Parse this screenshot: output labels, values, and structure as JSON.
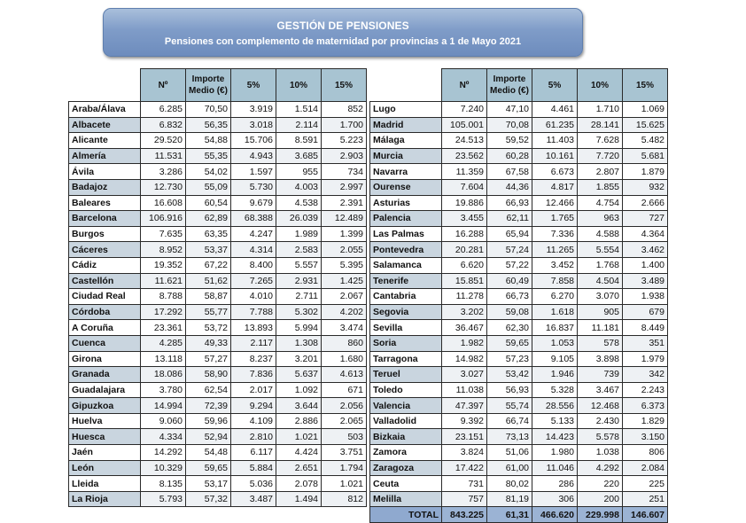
{
  "header": {
    "title": "GESTIÓN DE  PENSIONES",
    "subtitle": "Pensiones con complemento de maternidad por provincias a 1 de Mayo 2021"
  },
  "columns": [
    "Nº",
    "Importe Medio (€)",
    "5%",
    "10%",
    "15%"
  ],
  "columns_split": {
    "n": "Nº",
    "importe_line1": "Importe",
    "importe_line2": "Medio (€)",
    "p5": "5%",
    "p10": "10%",
    "p15": "15%"
  },
  "left_table": [
    [
      "Araba/Álava",
      "6.285",
      "70,50",
      "3.919",
      "1.514",
      "852"
    ],
    [
      "Albacete",
      "6.832",
      "56,35",
      "3.018",
      "2.114",
      "1.700"
    ],
    [
      "Alicante",
      "29.520",
      "54,88",
      "15.706",
      "8.591",
      "5.223"
    ],
    [
      "Almería",
      "11.531",
      "55,35",
      "4.943",
      "3.685",
      "2.903"
    ],
    [
      "Ávila",
      "3.286",
      "54,02",
      "1.597",
      "955",
      "734"
    ],
    [
      "Badajoz",
      "12.730",
      "55,09",
      "5.730",
      "4.003",
      "2.997"
    ],
    [
      "Baleares",
      "16.608",
      "60,54",
      "9.679",
      "4.538",
      "2.391"
    ],
    [
      "Barcelona",
      "106.916",
      "62,89",
      "68.388",
      "26.039",
      "12.489"
    ],
    [
      "Burgos",
      "7.635",
      "63,35",
      "4.247",
      "1.989",
      "1.399"
    ],
    [
      "Cáceres",
      "8.952",
      "53,37",
      "4.314",
      "2.583",
      "2.055"
    ],
    [
      "Cádiz",
      "19.352",
      "67,22",
      "8.400",
      "5.557",
      "5.395"
    ],
    [
      "Castellón",
      "11.621",
      "51,62",
      "7.265",
      "2.931",
      "1.425"
    ],
    [
      "Ciudad Real",
      "8.788",
      "58,87",
      "4.010",
      "2.711",
      "2.067"
    ],
    [
      "Córdoba",
      "17.292",
      "55,77",
      "7.788",
      "5.302",
      "4.202"
    ],
    [
      "A Coruña",
      "23.361",
      "53,72",
      "13.893",
      "5.994",
      "3.474"
    ],
    [
      "Cuenca",
      "4.285",
      "49,33",
      "2.117",
      "1.308",
      "860"
    ],
    [
      "Girona",
      "13.118",
      "57,27",
      "8.237",
      "3.201",
      "1.680"
    ],
    [
      "Granada",
      "18.086",
      "58,90",
      "7.836",
      "5.637",
      "4.613"
    ],
    [
      "Guadalajara",
      "3.780",
      "62,54",
      "2.017",
      "1.092",
      "671"
    ],
    [
      "Gipuzkoa",
      "14.994",
      "72,39",
      "9.294",
      "3.644",
      "2.056"
    ],
    [
      "Huelva",
      "9.060",
      "59,96",
      "4.109",
      "2.886",
      "2.065"
    ],
    [
      "Huesca",
      "4.334",
      "52,94",
      "2.810",
      "1.021",
      "503"
    ],
    [
      "Jaén",
      "14.292",
      "54,48",
      "6.117",
      "4.424",
      "3.751"
    ],
    [
      "León",
      "10.329",
      "59,65",
      "5.884",
      "2.651",
      "1.794"
    ],
    [
      "Lleida",
      "8.135",
      "53,17",
      "5.036",
      "2.078",
      "1.021"
    ],
    [
      "La Rioja",
      "5.793",
      "57,32",
      "3.487",
      "1.494",
      "812"
    ]
  ],
  "right_table": [
    [
      "Lugo",
      "7.240",
      "47,10",
      "4.461",
      "1.710",
      "1.069"
    ],
    [
      "Madrid",
      "105.001",
      "70,08",
      "61.235",
      "28.141",
      "15.625"
    ],
    [
      "Málaga",
      "24.513",
      "59,52",
      "11.403",
      "7.628",
      "5.482"
    ],
    [
      "Murcia",
      "23.562",
      "60,28",
      "10.161",
      "7.720",
      "5.681"
    ],
    [
      "Navarra",
      "11.359",
      "67,58",
      "6.673",
      "2.807",
      "1.879"
    ],
    [
      "Ourense",
      "7.604",
      "44,36",
      "4.817",
      "1.855",
      "932"
    ],
    [
      "Asturias",
      "19.886",
      "66,93",
      "12.466",
      "4.754",
      "2.666"
    ],
    [
      "Palencia",
      "3.455",
      "62,11",
      "1.765",
      "963",
      "727"
    ],
    [
      "Las Palmas",
      "16.288",
      "65,94",
      "7.336",
      "4.588",
      "4.364"
    ],
    [
      "Pontevedra",
      "20.281",
      "57,24",
      "11.265",
      "5.554",
      "3.462"
    ],
    [
      "Salamanca",
      "6.620",
      "57,22",
      "3.452",
      "1.768",
      "1.400"
    ],
    [
      "Tenerife",
      "15.851",
      "60,49",
      "7.858",
      "4.504",
      "3.489"
    ],
    [
      "Cantabria",
      "11.278",
      "66,73",
      "6.270",
      "3.070",
      "1.938"
    ],
    [
      "Segovia",
      "3.202",
      "59,08",
      "1.618",
      "905",
      "679"
    ],
    [
      "Sevilla",
      "36.467",
      "62,30",
      "16.837",
      "11.181",
      "8.449"
    ],
    [
      "Soria",
      "1.982",
      "59,65",
      "1.053",
      "578",
      "351"
    ],
    [
      "Tarragona",
      "14.982",
      "57,23",
      "9.105",
      "3.898",
      "1.979"
    ],
    [
      "Teruel",
      "3.027",
      "53,42",
      "1.946",
      "739",
      "342"
    ],
    [
      "Toledo",
      "11.038",
      "56,93",
      "5.328",
      "3.467",
      "2.243"
    ],
    [
      "Valencia",
      "47.397",
      "55,74",
      "28.556",
      "12.468",
      "6.373"
    ],
    [
      "Valladolid",
      "9.392",
      "66,74",
      "5.133",
      "2.430",
      "1.829"
    ],
    [
      "Bizkaia",
      "23.151",
      "73,13",
      "14.423",
      "5.578",
      "3.150"
    ],
    [
      "Zamora",
      "3.824",
      "51,06",
      "1.980",
      "1.038",
      "806"
    ],
    [
      "Zaragoza",
      "17.422",
      "61,00",
      "11.046",
      "4.292",
      "2.084"
    ],
    [
      "Ceuta",
      "731",
      "80,02",
      "286",
      "220",
      "225"
    ],
    [
      "Melilla",
      "757",
      "81,19",
      "306",
      "200",
      "251"
    ]
  ],
  "total": [
    "TOTAL",
    "843.225",
    "61,31",
    "466.620",
    "229.998",
    "146.607"
  ],
  "colors": {
    "banner": "#7f9cc8",
    "column_header": "#a8c4d2",
    "name_cell_alt": "#c9d5df",
    "total_row": "#9bb3d4"
  }
}
